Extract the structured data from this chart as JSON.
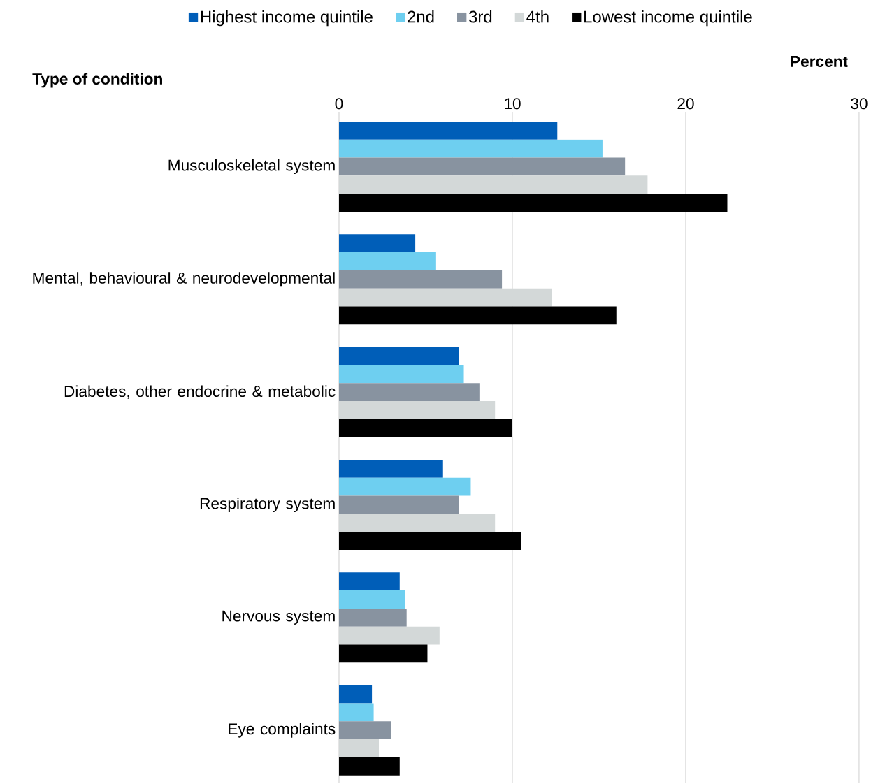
{
  "chart_data": {
    "type": "bar",
    "orientation": "horizontal",
    "xlabel": "Percent",
    "ylabel": "Type of condition",
    "categories": [
      "Musculoskeletal system",
      "Mental, behavioural & neurodevelopmental",
      "Diabetes, other endocrine & metabolic",
      "Respiratory system",
      "Nervous system",
      "Eye complaints"
    ],
    "series": [
      {
        "name": "Highest income quintile",
        "color": "#005eb8",
        "values": [
          12.6,
          4.4,
          6.9,
          6.0,
          3.5,
          1.9
        ]
      },
      {
        "name": "2nd",
        "color": "#6ecff0",
        "values": [
          15.2,
          5.6,
          7.2,
          7.6,
          3.8,
          2.0
        ]
      },
      {
        "name": "3rd",
        "color": "#8893a0",
        "values": [
          16.5,
          9.4,
          8.1,
          6.9,
          3.9,
          3.0
        ]
      },
      {
        "name": "4th",
        "color": "#d3d8d8",
        "values": [
          17.8,
          12.3,
          9.0,
          9.0,
          5.8,
          2.3
        ]
      },
      {
        "name": "Lowest income quintile",
        "color": "#000000",
        "values": [
          22.4,
          16.0,
          10.0,
          10.5,
          5.1,
          3.5
        ]
      }
    ],
    "xlim": [
      0,
      30
    ],
    "xticks": [
      0,
      10,
      20,
      30
    ],
    "grid": "x",
    "legend": "top"
  }
}
